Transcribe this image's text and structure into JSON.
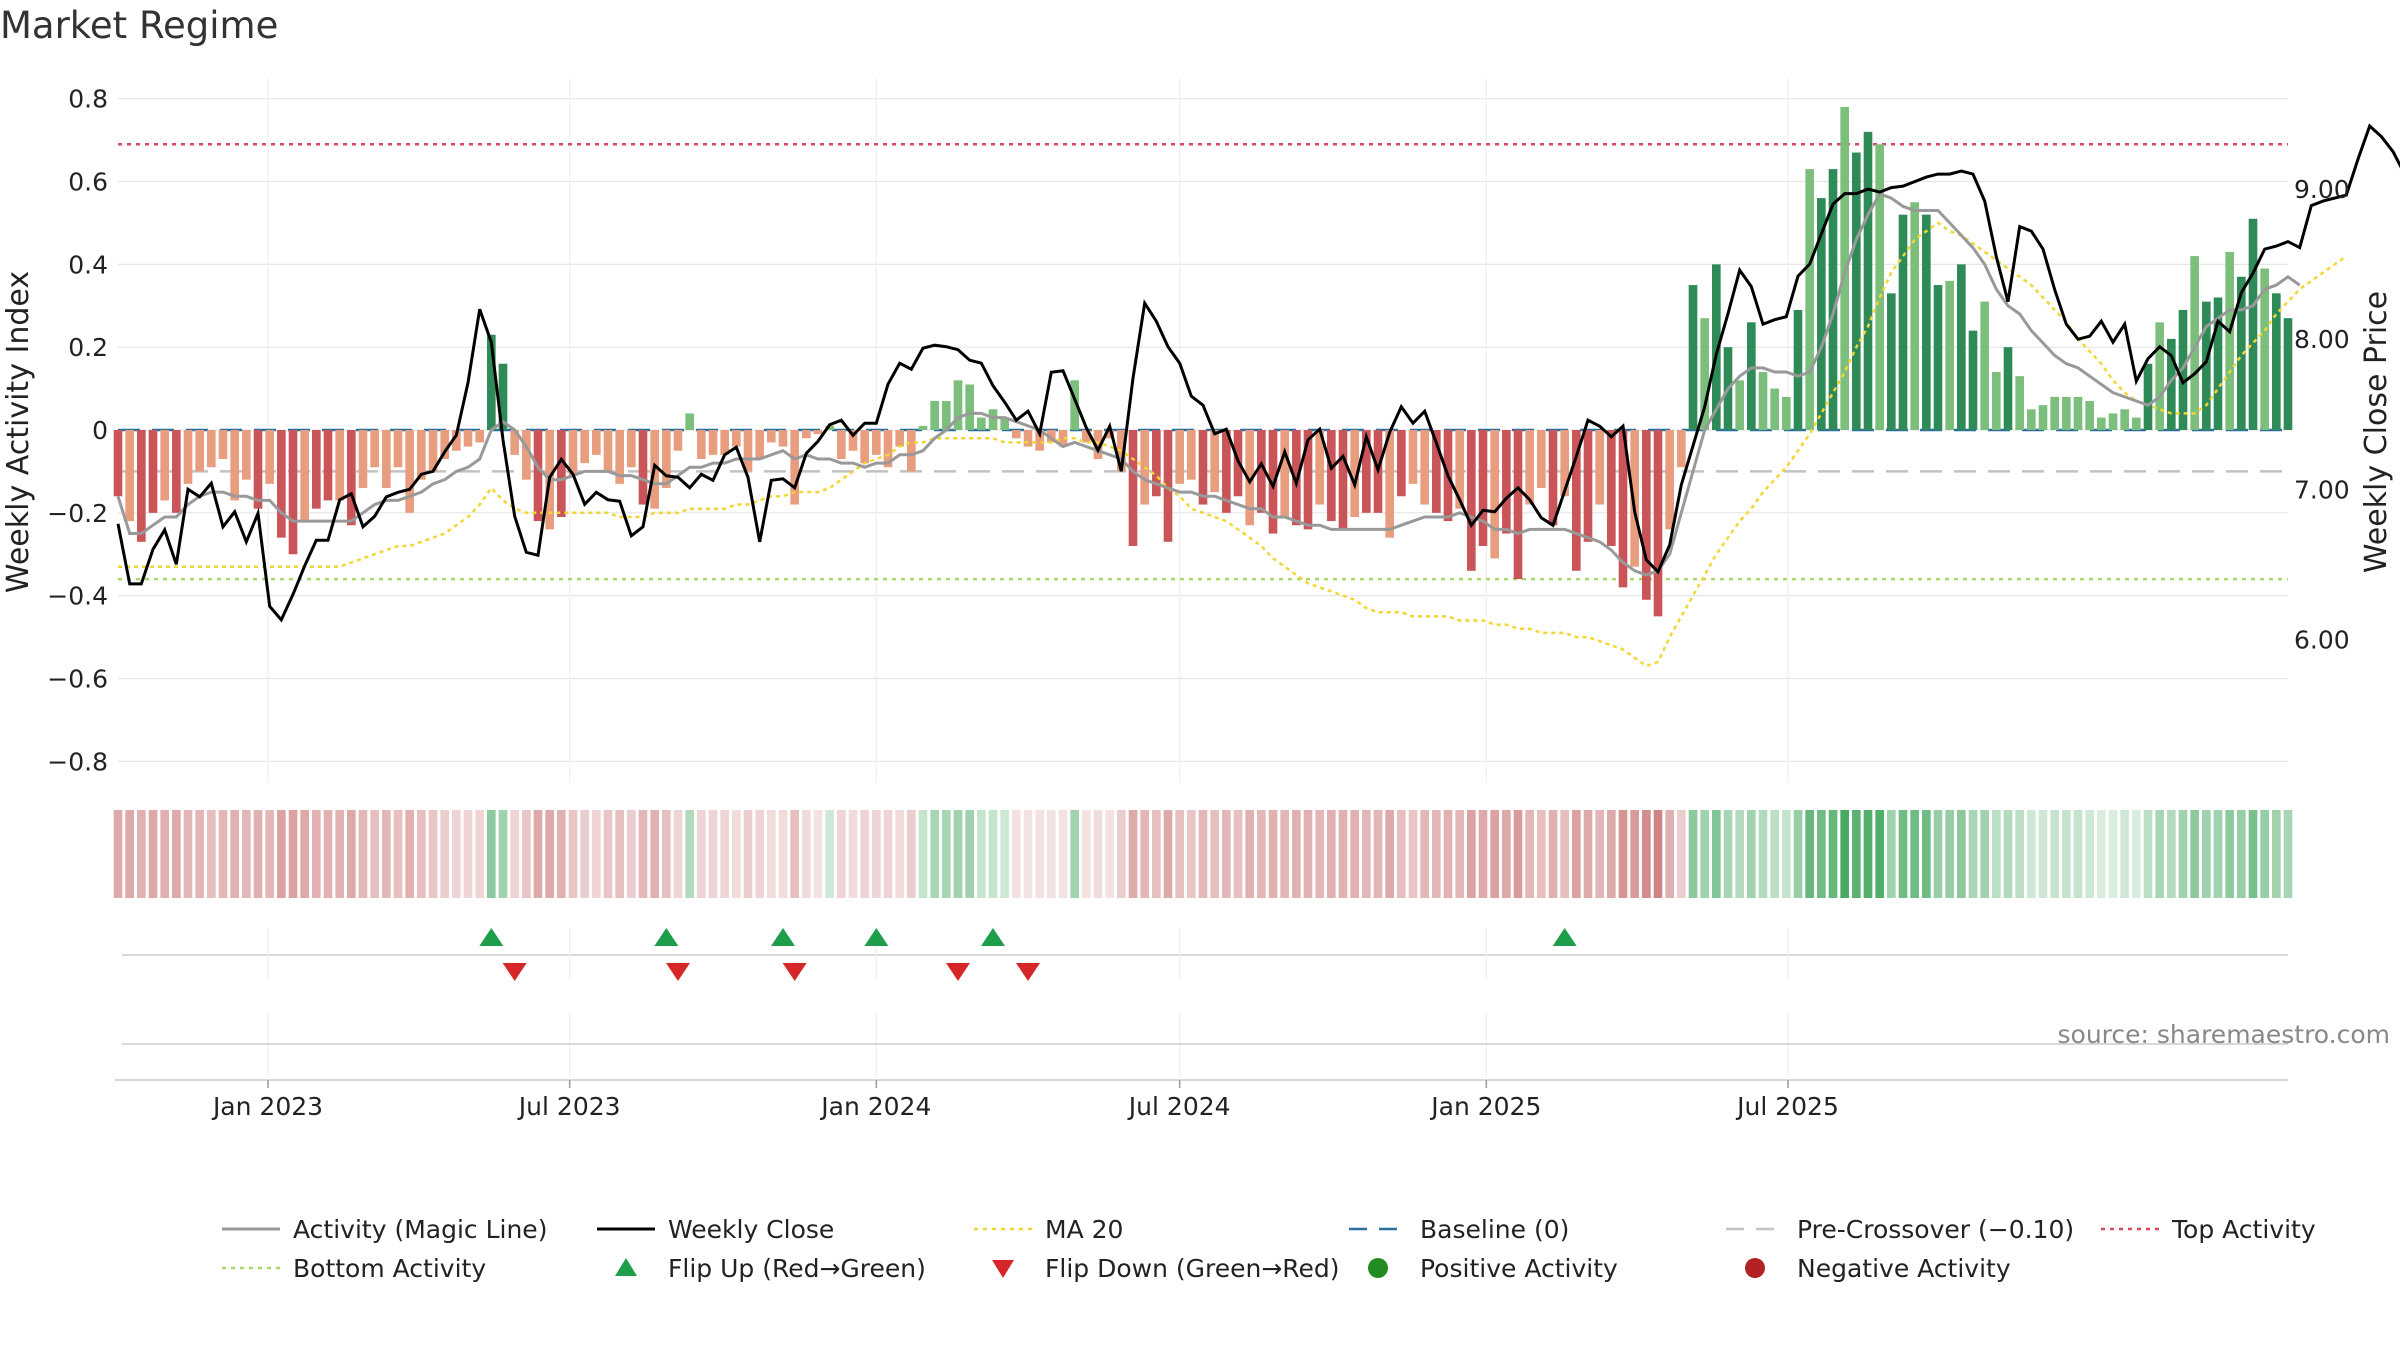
{
  "chart_data": {
    "type": "bar",
    "title": "Market Regime",
    "ylabel": "Weekly Activity Index",
    "y2label": "Weekly Close Price",
    "ylim": [
      -0.85,
      0.85
    ],
    "yticks": [
      -0.8,
      -0.6,
      -0.4,
      -0.2,
      0,
      0.2,
      0.4,
      0.6,
      0.8
    ],
    "ytick_labels": [
      "−0.8",
      "−0.6",
      "−0.4",
      "−0.2",
      "0",
      "0.2",
      "0.4",
      "0.6",
      "0.8"
    ],
    "y2lim": [
      5.05,
      9.74
    ],
    "y2ticks": [
      6.0,
      7.0,
      8.0,
      9.0
    ],
    "y2tick_labels": [
      "6.00",
      "7.00",
      "8.00",
      "9.00"
    ],
    "x_start": "2022-10-03",
    "x_step_days": 7,
    "x_ticks": [
      {
        "date": "2023-01-01",
        "label": "Jan 2023"
      },
      {
        "date": "2023-07-01",
        "label": "Jul 2023"
      },
      {
        "date": "2024-01-01",
        "label": "Jan 2024"
      },
      {
        "date": "2024-07-01",
        "label": "Jul 2024"
      },
      {
        "date": "2025-01-01",
        "label": "Jan 2025"
      },
      {
        "date": "2025-07-01",
        "label": "Jul 2025"
      }
    ],
    "grid": true,
    "legend_position": "bottom",
    "annotation": "source: sharemaestro.com",
    "top_activity": 0.69,
    "bottom_activity": -0.36,
    "baseline": 0,
    "pre_crossover": -0.1,
    "activity": [
      -0.16,
      -0.22,
      -0.27,
      -0.2,
      -0.17,
      -0.2,
      -0.13,
      -0.1,
      -0.09,
      -0.07,
      -0.17,
      -0.12,
      -0.19,
      -0.13,
      -0.26,
      -0.3,
      -0.22,
      -0.19,
      -0.17,
      -0.17,
      -0.23,
      -0.14,
      -0.09,
      -0.14,
      -0.09,
      -0.2,
      -0.12,
      -0.1,
      -0.07,
      -0.05,
      -0.04,
      -0.03,
      0.23,
      0.16,
      -0.06,
      -0.12,
      -0.22,
      -0.24,
      -0.21,
      -0.11,
      -0.08,
      -0.06,
      -0.1,
      -0.13,
      -0.09,
      -0.18,
      -0.19,
      -0.14,
      -0.05,
      0.04,
      -0.07,
      -0.06,
      -0.06,
      -0.04,
      -0.1,
      -0.07,
      -0.03,
      -0.04,
      -0.18,
      -0.02,
      -0.01,
      0.01,
      -0.07,
      -0.05,
      -0.08,
      -0.06,
      -0.09,
      -0.04,
      -0.1,
      0.01,
      0.07,
      0.07,
      0.12,
      0.11,
      0.03,
      0.05,
      0.03,
      -0.02,
      -0.04,
      -0.05,
      -0.03,
      -0.04,
      0.12,
      -0.03,
      -0.07,
      -0.02,
      -0.1,
      -0.28,
      -0.18,
      -0.16,
      -0.27,
      -0.13,
      -0.12,
      -0.18,
      -0.15,
      -0.2,
      -0.16,
      -0.23,
      -0.2,
      -0.25,
      -0.21,
      -0.23,
      -0.24,
      -0.18,
      -0.22,
      -0.24,
      -0.21,
      -0.2,
      -0.2,
      -0.26,
      -0.16,
      -0.13,
      -0.18,
      -0.2,
      -0.22,
      -0.19,
      -0.34,
      -0.28,
      -0.31,
      -0.25,
      -0.36,
      -0.18,
      -0.14,
      -0.23,
      -0.16,
      -0.34,
      -0.27,
      -0.18,
      -0.28,
      -0.38,
      -0.33,
      -0.41,
      -0.45,
      -0.24,
      -0.09,
      0.35,
      0.27,
      0.4,
      0.2,
      0.12,
      0.26,
      0.14,
      0.1,
      0.08,
      0.29,
      0.63,
      0.56,
      0.63,
      0.78,
      0.67,
      0.72,
      0.69,
      0.33,
      0.52,
      0.55,
      0.52,
      0.35,
      0.36,
      0.4,
      0.24,
      0.31,
      0.14,
      0.2,
      0.13,
      0.05,
      0.06,
      0.08,
      0.08,
      0.08,
      0.07,
      0.03,
      0.04,
      0.05,
      0.03,
      0.16,
      0.26,
      0.22,
      0.29,
      0.42,
      0.31,
      0.32,
      0.43,
      0.37,
      0.51,
      0.39,
      0.33,
      0.27
    ],
    "close_price": [
      6.77,
      6.37,
      6.37,
      6.6,
      6.73,
      6.5,
      7.0,
      6.95,
      7.04,
      6.75,
      6.85,
      6.65,
      6.84,
      6.22,
      6.13,
      6.3,
      6.49,
      6.66,
      6.66,
      6.93,
      6.97,
      6.75,
      6.82,
      6.95,
      6.98,
      7.0,
      7.1,
      7.12,
      7.25,
      7.36,
      7.71,
      8.2,
      7.98,
      7.33,
      6.82,
      6.58,
      6.56,
      7.08,
      7.2,
      7.1,
      6.9,
      6.98,
      6.93,
      6.92,
      6.69,
      6.75,
      7.16,
      7.09,
      7.08,
      7.01,
      7.1,
      7.06,
      7.23,
      7.28,
      7.08,
      6.65,
      7.06,
      7.07,
      7.01,
      7.24,
      7.32,
      7.43,
      7.46,
      7.36,
      7.44,
      7.44,
      7.7,
      7.84,
      7.8,
      7.94,
      7.96,
      7.95,
      7.93,
      7.86,
      7.84,
      7.69,
      7.58,
      7.46,
      7.52,
      7.37,
      7.78,
      7.79,
      7.6,
      7.41,
      7.26,
      7.42,
      7.12,
      7.74,
      8.24,
      8.12,
      7.95,
      7.84,
      7.62,
      7.56,
      7.37,
      7.4,
      7.19,
      7.05,
      7.17,
      7.02,
      7.25,
      7.04,
      7.33,
      7.4,
      7.14,
      7.22,
      7.03,
      7.35,
      7.13,
      7.38,
      7.55,
      7.44,
      7.52,
      7.31,
      7.09,
      6.93,
      6.76,
      6.86,
      6.85,
      6.94,
      7.01,
      6.93,
      6.81,
      6.76,
      6.99,
      7.22,
      7.46,
      7.42,
      7.35,
      7.42,
      6.85,
      6.53,
      6.45,
      6.63,
      7.03,
      7.29,
      7.55,
      7.9,
      8.17,
      8.46,
      8.35,
      8.1,
      8.13,
      8.15,
      8.42,
      8.5,
      8.7,
      8.9,
      8.97,
      8.97,
      9.0,
      8.98,
      9.01,
      9.02,
      9.05,
      9.08,
      9.1,
      9.1,
      9.12,
      9.1,
      8.92,
      8.55,
      8.25,
      8.75,
      8.72,
      8.6,
      8.33,
      8.1,
      8.0,
      8.02,
      8.12,
      7.98,
      8.1,
      7.72,
      7.87,
      7.95,
      7.89,
      7.71,
      7.77,
      7.85,
      8.12,
      8.05,
      8.31,
      8.44,
      8.6,
      8.62,
      8.65,
      8.61,
      8.89,
      8.92,
      8.94,
      8.96,
      9.2,
      9.42,
      9.35,
      9.25,
      9.1
    ],
    "magic_line": [
      -0.16,
      -0.25,
      -0.25,
      -0.23,
      -0.21,
      -0.21,
      -0.18,
      -0.16,
      -0.15,
      -0.15,
      -0.16,
      -0.16,
      -0.17,
      -0.17,
      -0.2,
      -0.22,
      -0.22,
      -0.22,
      -0.22,
      -0.22,
      -0.22,
      -0.2,
      -0.18,
      -0.17,
      -0.17,
      -0.16,
      -0.15,
      -0.13,
      -0.12,
      -0.1,
      -0.09,
      -0.07,
      0.0,
      0.02,
      0.0,
      -0.04,
      -0.09,
      -0.12,
      -0.12,
      -0.11,
      -0.1,
      -0.1,
      -0.1,
      -0.11,
      -0.11,
      -0.12,
      -0.13,
      -0.13,
      -0.11,
      -0.09,
      -0.09,
      -0.08,
      -0.08,
      -0.07,
      -0.07,
      -0.07,
      -0.06,
      -0.05,
      -0.07,
      -0.06,
      -0.07,
      -0.07,
      -0.08,
      -0.08,
      -0.09,
      -0.08,
      -0.08,
      -0.06,
      -0.06,
      -0.05,
      -0.02,
      0.0,
      0.03,
      0.04,
      0.04,
      0.03,
      0.03,
      0.02,
      0.01,
      0.0,
      -0.02,
      -0.04,
      -0.03,
      -0.04,
      -0.05,
      -0.06,
      -0.07,
      -0.1,
      -0.12,
      -0.13,
      -0.14,
      -0.15,
      -0.15,
      -0.16,
      -0.16,
      -0.17,
      -0.18,
      -0.19,
      -0.19,
      -0.21,
      -0.21,
      -0.22,
      -0.23,
      -0.23,
      -0.24,
      -0.24,
      -0.24,
      -0.24,
      -0.24,
      -0.24,
      -0.23,
      -0.22,
      -0.21,
      -0.21,
      -0.21,
      -0.2,
      -0.21,
      -0.22,
      -0.24,
      -0.24,
      -0.25,
      -0.24,
      -0.24,
      -0.24,
      -0.24,
      -0.25,
      -0.26,
      -0.27,
      -0.29,
      -0.32,
      -0.34,
      -0.35,
      -0.34,
      -0.3,
      -0.2,
      -0.1,
      0.0,
      0.05,
      0.1,
      0.13,
      0.15,
      0.15,
      0.14,
      0.14,
      0.13,
      0.14,
      0.2,
      0.28,
      0.38,
      0.46,
      0.52,
      0.57,
      0.56,
      0.54,
      0.53,
      0.53,
      0.53,
      0.5,
      0.47,
      0.44,
      0.4,
      0.34,
      0.3,
      0.28,
      0.24,
      0.21,
      0.18,
      0.16,
      0.15,
      0.13,
      0.11,
      0.09,
      0.08,
      0.07,
      0.06,
      0.08,
      0.12,
      0.15,
      0.2,
      0.25,
      0.27,
      0.29,
      0.29,
      0.3,
      0.34,
      0.35,
      0.37,
      0.35
    ],
    "ma20": [
      -0.33,
      -0.33,
      -0.33,
      -0.33,
      -0.33,
      -0.33,
      -0.33,
      -0.33,
      -0.33,
      -0.33,
      -0.33,
      -0.33,
      -0.33,
      -0.33,
      -0.33,
      -0.33,
      -0.33,
      -0.33,
      -0.33,
      -0.33,
      -0.32,
      -0.31,
      -0.3,
      -0.29,
      -0.28,
      -0.28,
      -0.27,
      -0.26,
      -0.25,
      -0.23,
      -0.21,
      -0.18,
      -0.14,
      -0.17,
      -0.19,
      -0.2,
      -0.2,
      -0.2,
      -0.2,
      -0.2,
      -0.2,
      -0.2,
      -0.2,
      -0.21,
      -0.21,
      -0.21,
      -0.2,
      -0.2,
      -0.2,
      -0.19,
      -0.19,
      -0.19,
      -0.19,
      -0.18,
      -0.18,
      -0.17,
      -0.16,
      -0.16,
      -0.15,
      -0.15,
      -0.15,
      -0.14,
      -0.12,
      -0.1,
      -0.08,
      -0.07,
      -0.06,
      -0.04,
      -0.03,
      -0.03,
      -0.02,
      -0.02,
      -0.02,
      -0.02,
      -0.02,
      -0.02,
      -0.03,
      -0.03,
      -0.03,
      -0.03,
      -0.03,
      -0.02,
      -0.02,
      -0.03,
      -0.03,
      -0.04,
      -0.05,
      -0.07,
      -0.09,
      -0.11,
      -0.14,
      -0.16,
      -0.19,
      -0.2,
      -0.21,
      -0.22,
      -0.24,
      -0.26,
      -0.28,
      -0.31,
      -0.33,
      -0.35,
      -0.37,
      -0.38,
      -0.39,
      -0.4,
      -0.41,
      -0.43,
      -0.44,
      -0.44,
      -0.44,
      -0.45,
      -0.45,
      -0.45,
      -0.45,
      -0.46,
      -0.46,
      -0.46,
      -0.47,
      -0.47,
      -0.48,
      -0.48,
      -0.49,
      -0.49,
      -0.49,
      -0.5,
      -0.5,
      -0.51,
      -0.52,
      -0.53,
      -0.55,
      -0.57,
      -0.56,
      -0.5,
      -0.45,
      -0.4,
      -0.35,
      -0.3,
      -0.26,
      -0.22,
      -0.19,
      -0.15,
      -0.12,
      -0.09,
      -0.05,
      -0.01,
      0.04,
      0.09,
      0.14,
      0.2,
      0.25,
      0.32,
      0.38,
      0.42,
      0.46,
      0.48,
      0.5,
      0.48,
      0.47,
      0.45,
      0.43,
      0.41,
      0.39,
      0.37,
      0.35,
      0.32,
      0.29,
      0.26,
      0.22,
      0.19,
      0.16,
      0.12,
      0.09,
      0.07,
      0.06,
      0.05,
      0.04,
      0.04,
      0.04,
      0.06,
      0.1,
      0.14,
      0.18,
      0.21,
      0.24,
      0.28,
      0.31,
      0.34,
      0.36,
      0.38,
      0.4,
      0.42
    ],
    "regime_strength": [
      0.6,
      0.6,
      0.55,
      0.6,
      0.55,
      0.6,
      0.5,
      0.5,
      0.45,
      0.5,
      0.55,
      0.5,
      0.55,
      0.5,
      0.65,
      0.65,
      0.6,
      0.55,
      0.55,
      0.55,
      0.6,
      0.5,
      0.45,
      0.5,
      0.45,
      0.55,
      0.45,
      0.4,
      0.35,
      0.3,
      0.3,
      0.3,
      0.6,
      0.5,
      0.3,
      0.4,
      0.6,
      0.6,
      0.55,
      0.4,
      0.35,
      0.3,
      0.4,
      0.45,
      0.35,
      0.5,
      0.55,
      0.45,
      0.3,
      0.4,
      0.3,
      0.3,
      0.3,
      0.25,
      0.35,
      0.3,
      0.25,
      0.25,
      0.45,
      0.25,
      0.2,
      0.25,
      0.3,
      0.25,
      0.3,
      0.3,
      0.3,
      0.25,
      0.35,
      0.3,
      0.45,
      0.45,
      0.5,
      0.5,
      0.3,
      0.3,
      0.25,
      0.2,
      0.2,
      0.2,
      0.2,
      0.2,
      0.5,
      0.2,
      0.25,
      0.2,
      0.35,
      0.6,
      0.5,
      0.45,
      0.6,
      0.45,
      0.4,
      0.5,
      0.45,
      0.5,
      0.45,
      0.55,
      0.5,
      0.55,
      0.5,
      0.55,
      0.55,
      0.5,
      0.55,
      0.55,
      0.55,
      0.5,
      0.5,
      0.6,
      0.45,
      0.4,
      0.5,
      0.5,
      0.55,
      0.5,
      0.65,
      0.6,
      0.65,
      0.6,
      0.7,
      0.5,
      0.45,
      0.55,
      0.45,
      0.65,
      0.6,
      0.5,
      0.6,
      0.75,
      0.7,
      0.8,
      0.85,
      0.55,
      0.35,
      0.6,
      0.5,
      0.65,
      0.45,
      0.4,
      0.5,
      0.4,
      0.35,
      0.3,
      0.55,
      0.8,
      0.75,
      0.8,
      0.95,
      0.85,
      0.9,
      0.9,
      0.5,
      0.75,
      0.75,
      0.75,
      0.55,
      0.55,
      0.6,
      0.45,
      0.5,
      0.35,
      0.4,
      0.35,
      0.25,
      0.25,
      0.3,
      0.3,
      0.3,
      0.25,
      0.2,
      0.2,
      0.25,
      0.2,
      0.35,
      0.45,
      0.4,
      0.5,
      0.6,
      0.5,
      0.5,
      0.6,
      0.55,
      0.7,
      0.55,
      0.5,
      0.45
    ],
    "flip_up_weeks": [
      32,
      47,
      57,
      65,
      75,
      124
    ],
    "flip_down_weeks": [
      34,
      48,
      58,
      72,
      78
    ],
    "legend": [
      {
        "label": "Activity (Magic Line)",
        "symbol": "line",
        "color": "#999999"
      },
      {
        "label": "Weekly Close",
        "symbol": "line",
        "color": "#000000"
      },
      {
        "label": "MA 20",
        "symbol": "dotted",
        "color": "#f2d633"
      },
      {
        "label": "Baseline (0)",
        "symbol": "dashed",
        "color": "#2b6f9e"
      },
      {
        "label": "Pre-Crossover (−0.10)",
        "symbol": "dashed",
        "color": "#c2c2c2"
      },
      {
        "label": "Top Activity",
        "symbol": "dotted",
        "color": "#d9485f"
      },
      {
        "label": "Bottom Activity",
        "symbol": "dotted",
        "color": "#a8d86a"
      },
      {
        "label": "Flip Up (Red→Green)",
        "symbol": "triangle-up",
        "color": "#1e9e4a"
      },
      {
        "label": "Flip Down (Green→Red)",
        "symbol": "triangle-down",
        "color": "#d62728"
      },
      {
        "label": "Positive Activity",
        "symbol": "circle",
        "color": "#228b22"
      },
      {
        "label": "Negative Activity",
        "symbol": "circle",
        "color": "#b22222"
      }
    ]
  },
  "colors": {
    "bar_pos_strong": "#2e8b57",
    "bar_pos_light": "#7cbf7c",
    "bar_neg_strong": "#c95559",
    "bar_neg_light": "#e89e7e",
    "strip_pos": "#3fa55b",
    "strip_neg": "#c8706f",
    "grid": "#e6e6e6"
  }
}
